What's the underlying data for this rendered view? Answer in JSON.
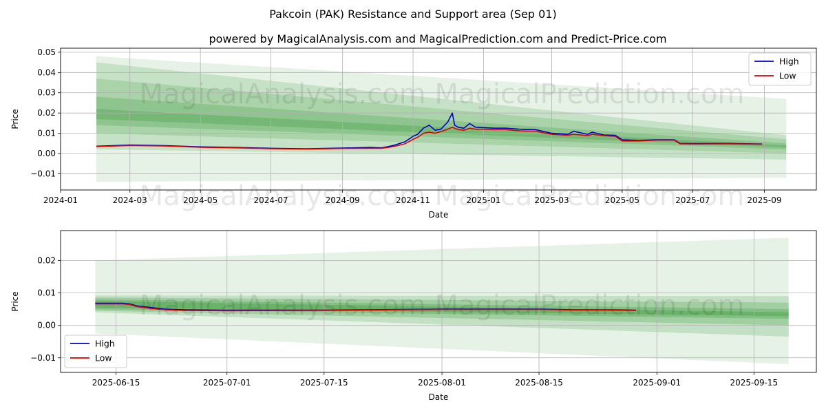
{
  "figure": {
    "title": "Pakcoin (PAK) Resistance and Support area (Sep 01)",
    "subtitle": "powered by MagicalAnalysis.com and MagicalPrediction.com and Predict-Price.com",
    "watermark": "MagicalAnalysis.com     MagicalPrediction.com",
    "colors": {
      "high": "#0000cc",
      "low": "#dd0000",
      "band": "#3a9a3a",
      "grid": "#b0b0b0"
    }
  },
  "chart_data": [
    {
      "type": "line",
      "xlabel": "Date",
      "ylabel": "Price",
      "x_ticks": [
        "2024-01",
        "2024-03",
        "2024-05",
        "2024-07",
        "2024-09",
        "2024-11",
        "2025-01",
        "2025-03",
        "2025-05",
        "2025-07",
        "2025-09"
      ],
      "y_ticks": [
        "0.05",
        "0.04",
        "0.03",
        "0.02",
        "0.01",
        "0.00",
        "−0.01"
      ],
      "xlim": [
        "2024-01-01",
        "2025-10-16"
      ],
      "ylim": [
        -0.018,
        0.052
      ],
      "grid": true,
      "legend": "top-right",
      "bands_date_range": [
        "2024-02-01",
        "2025-09-20"
      ],
      "bands": [
        {
          "start": [
            -0.014,
            0.048
          ],
          "end": [
            -0.012,
            0.027
          ],
          "opacity": 0.13
        },
        {
          "start": [
            0.002,
            0.045
          ],
          "end": [
            -0.003,
            0.009
          ],
          "opacity": 0.18
        },
        {
          "start": [
            0.01,
            0.037
          ],
          "end": [
            0.0,
            0.007
          ],
          "opacity": 0.2
        },
        {
          "start": [
            0.014,
            0.028
          ],
          "end": [
            0.002,
            0.005
          ],
          "opacity": 0.25
        },
        {
          "start": [
            0.017,
            0.022
          ],
          "end": [
            0.003,
            0.004
          ],
          "opacity": 0.3
        }
      ],
      "series": [
        {
          "name": "High",
          "color": "#0000cc",
          "x": [
            "2024-02-01",
            "2024-03-01",
            "2024-04-01",
            "2024-05-01",
            "2024-06-01",
            "2024-07-01",
            "2024-08-01",
            "2024-09-01",
            "2024-09-25",
            "2024-10-05",
            "2024-10-15",
            "2024-10-25",
            "2024-11-01",
            "2024-11-05",
            "2024-11-10",
            "2024-11-15",
            "2024-11-20",
            "2024-11-25",
            "2024-12-01",
            "2024-12-05",
            "2024-12-07",
            "2024-12-10",
            "2024-12-15",
            "2024-12-20",
            "2024-12-25",
            "2025-01-01",
            "2025-01-10",
            "2025-01-20",
            "2025-02-01",
            "2025-02-15",
            "2025-03-01",
            "2025-03-15",
            "2025-03-20",
            "2025-04-01",
            "2025-04-05",
            "2025-04-15",
            "2025-04-25",
            "2025-05-01",
            "2025-05-15",
            "2025-06-01",
            "2025-06-15",
            "2025-06-20",
            "2025-07-01",
            "2025-08-01",
            "2025-08-20",
            "2025-08-30"
          ],
          "values": [
            0.0036,
            0.0042,
            0.0039,
            0.0033,
            0.003,
            0.0026,
            0.0024,
            0.0027,
            0.003,
            0.0028,
            0.004,
            0.0058,
            0.0085,
            0.0095,
            0.0125,
            0.014,
            0.0115,
            0.012,
            0.0155,
            0.02,
            0.014,
            0.013,
            0.0125,
            0.0148,
            0.013,
            0.0128,
            0.0125,
            0.0125,
            0.012,
            0.0118,
            0.01,
            0.0095,
            0.011,
            0.0095,
            0.0105,
            0.0092,
            0.009,
            0.0068,
            0.0065,
            0.0068,
            0.0068,
            0.005,
            0.0049,
            0.005,
            0.0048,
            0.0047
          ]
        },
        {
          "name": "Low",
          "color": "#dd0000",
          "x": [
            "2024-02-01",
            "2024-03-01",
            "2024-04-01",
            "2024-05-01",
            "2024-06-01",
            "2024-07-01",
            "2024-08-01",
            "2024-09-01",
            "2024-09-25",
            "2024-10-05",
            "2024-10-15",
            "2024-10-25",
            "2024-11-01",
            "2024-11-05",
            "2024-11-10",
            "2024-11-15",
            "2024-11-20",
            "2024-11-25",
            "2024-12-01",
            "2024-12-05",
            "2024-12-07",
            "2024-12-10",
            "2024-12-15",
            "2024-12-20",
            "2024-12-25",
            "2025-01-01",
            "2025-01-10",
            "2025-01-20",
            "2025-02-01",
            "2025-02-15",
            "2025-03-01",
            "2025-03-15",
            "2025-03-20",
            "2025-04-01",
            "2025-04-05",
            "2025-04-15",
            "2025-04-25",
            "2025-05-01",
            "2025-05-15",
            "2025-06-01",
            "2025-06-15",
            "2025-06-20",
            "2025-07-01",
            "2025-08-01",
            "2025-08-20",
            "2025-08-30"
          ],
          "values": [
            0.0034,
            0.004,
            0.0037,
            0.0031,
            0.0028,
            0.0024,
            0.0022,
            0.0025,
            0.0026,
            0.0026,
            0.0034,
            0.0048,
            0.007,
            0.008,
            0.01,
            0.0105,
            0.01,
            0.0108,
            0.012,
            0.013,
            0.0125,
            0.0118,
            0.0115,
            0.0125,
            0.012,
            0.012,
            0.0118,
            0.0118,
            0.0112,
            0.011,
            0.0095,
            0.009,
            0.0095,
            0.0088,
            0.0095,
            0.0088,
            0.0085,
            0.0062,
            0.0062,
            0.0066,
            0.0066,
            0.0048,
            0.0047,
            0.0048,
            0.0047,
            0.0046
          ]
        }
      ]
    },
    {
      "type": "line",
      "xlabel": "Date",
      "ylabel": "Price",
      "x_ticks": [
        "2025-06-15",
        "2025-07-01",
        "2025-07-15",
        "2025-08-01",
        "2025-08-15",
        "2025-09-01",
        "2025-09-15"
      ],
      "y_ticks": [
        "0.02",
        "0.01",
        "0.00",
        "−0.01"
      ],
      "xlim": [
        "2025-06-07",
        "2025-09-24"
      ],
      "ylim": [
        -0.0145,
        0.0292
      ],
      "grid": true,
      "legend": "bottom-left",
      "bands_date_range": [
        "2025-06-12",
        "2025-09-20"
      ],
      "bands": [
        {
          "start": [
            -0.0025,
            0.02
          ],
          "end": [
            -0.012,
            0.027
          ],
          "opacity": 0.13
        },
        {
          "start": [
            0.004,
            0.0092
          ],
          "end": [
            -0.0035,
            0.009
          ],
          "opacity": 0.2
        },
        {
          "start": [
            0.0045,
            0.0086
          ],
          "end": [
            0.0,
            0.007
          ],
          "opacity": 0.25
        },
        {
          "start": [
            0.005,
            0.008
          ],
          "end": [
            0.002,
            0.005
          ],
          "opacity": 0.3
        },
        {
          "start": [
            0.0055,
            0.0075
          ],
          "end": [
            0.0028,
            0.004
          ],
          "opacity": 0.35
        }
      ],
      "series": [
        {
          "name": "High",
          "color": "#0000cc",
          "x": [
            "2025-06-12",
            "2025-06-16",
            "2025-06-17",
            "2025-06-18",
            "2025-06-20",
            "2025-06-22",
            "2025-06-25",
            "2025-07-01",
            "2025-07-15",
            "2025-08-01",
            "2025-08-10",
            "2025-08-15",
            "2025-08-20",
            "2025-08-25",
            "2025-08-29"
          ],
          "values": [
            0.0068,
            0.0068,
            0.0066,
            0.006,
            0.0055,
            0.005,
            0.0048,
            0.0047,
            0.0047,
            0.005,
            0.005,
            0.005,
            0.0048,
            0.0048,
            0.0047
          ]
        },
        {
          "name": "Low",
          "color": "#dd0000",
          "x": [
            "2025-06-12",
            "2025-06-16",
            "2025-06-17",
            "2025-06-18",
            "2025-06-20",
            "2025-06-22",
            "2025-06-25",
            "2025-07-01",
            "2025-07-15",
            "2025-08-01",
            "2025-08-10",
            "2025-08-15",
            "2025-08-20",
            "2025-08-25",
            "2025-08-29"
          ],
          "values": [
            0.0066,
            0.0066,
            0.0064,
            0.0058,
            0.0052,
            0.0048,
            0.0046,
            0.0045,
            0.0046,
            0.0049,
            0.0049,
            0.0049,
            0.0047,
            0.0047,
            0.0046
          ]
        }
      ]
    }
  ]
}
